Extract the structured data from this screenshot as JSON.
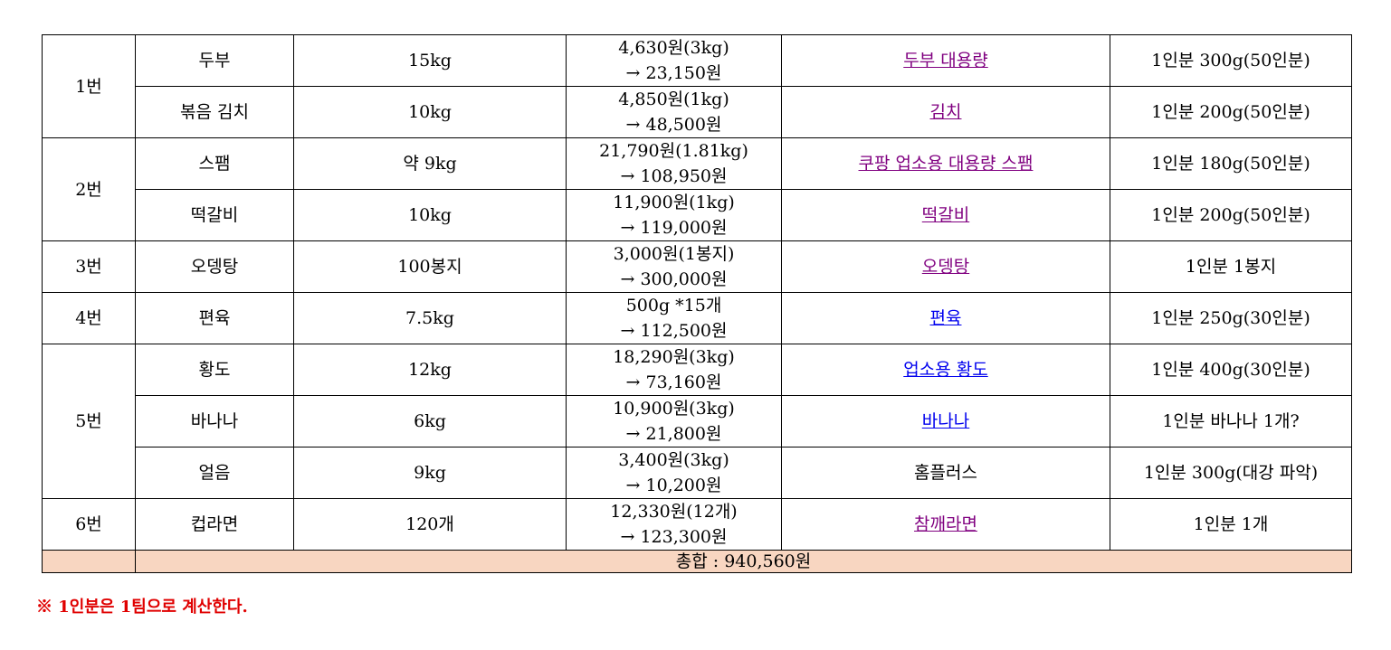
{
  "rows": [
    {
      "group": "1번",
      "item": "두부",
      "qty": "15kg",
      "price": "4,630원(3kg)",
      "total": "→ 23,150원",
      "source": "두부 대용량",
      "portion": "1인분 300g(50인분)"
    },
    {
      "item": "볶음 김치",
      "qty": "10kg",
      "price": "4,850원(1kg)",
      "total": "→ 48,500원",
      "source": "김치",
      "portion": "1인분 200g(50인분)"
    },
    {
      "group": "2번",
      "item": "스팸",
      "qty": "약 9kg",
      "price": "21,790원(1.81kg)",
      "total": "→ 108,950원",
      "source": "쿠팡 업소용 대용량 스팸",
      "portion": "1인분 180g(50인분)"
    },
    {
      "item": "떡갈비",
      "qty": "10kg",
      "price": "11,900원(1kg)",
      "total": "→ 119,000원",
      "source": "떡갈비",
      "portion": "1인분 200g(50인분)"
    },
    {
      "group": "3번",
      "item": "오뎅탕",
      "qty": "100봉지",
      "price": "3,000원(1봉지)",
      "total": "→ 300,000원",
      "source": "오뎅탕",
      "portion": "1인분 1봉지"
    },
    {
      "group": "4번",
      "item": "편육",
      "qty": "7.5kg",
      "price": "500g *15개",
      "total": "→ 112,500원",
      "source": "편육",
      "portion": "1인분 250g(30인분)"
    },
    {
      "group": "5번",
      "item": "황도",
      "qty": "12kg",
      "price": "18,290원(3kg)",
      "total": "→ 73,160원",
      "source": "업소용 황도",
      "portion": "1인분 400g(30인분)"
    },
    {
      "item": "바나나",
      "qty": "6kg",
      "price": "10,900원(3kg)",
      "total": "→ 21,800원",
      "source": "바나나",
      "portion": "1인분 바나나 1개?"
    },
    {
      "item": "얼음",
      "qty": "9kg",
      "price": "3,400원(3kg)",
      "total": "→ 10,200원",
      "source": "홈플러스",
      "portion": "1인분 300g(대강 파악)"
    },
    {
      "group": "6번",
      "item": "컵라면",
      "qty": "120개",
      "price": "12,330원(12개)",
      "total": "→ 123,300원",
      "source": "참깨라면",
      "portion": "1인분 1개"
    }
  ],
  "total_label": "총합 : 940,560원",
  "note": "※ 1인분은 1팀으로 계산한다.",
  "colors": {
    "link_visited": "#800080",
    "link_unvisited": "#0000ee",
    "total_row_bg": "#f8d6c1",
    "note_text": "#e00000"
  }
}
